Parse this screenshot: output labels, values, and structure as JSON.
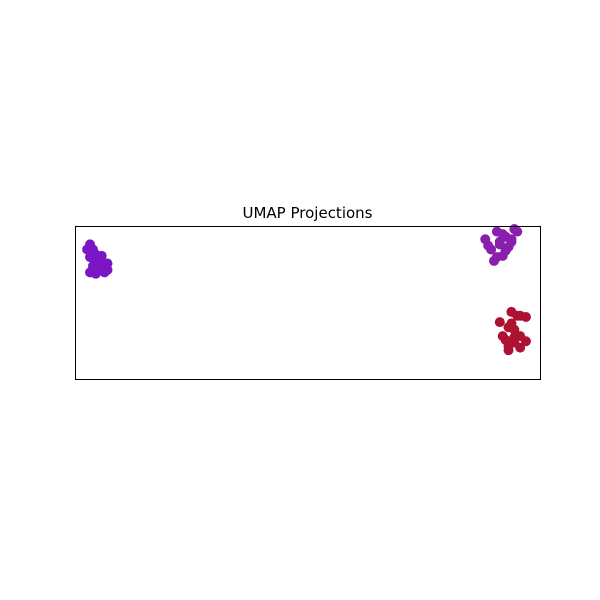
{
  "chart_data": {
    "type": "scatter",
    "title": "UMAP Projections",
    "xlabel": "",
    "ylabel": "",
    "xlim": [
      -6.0,
      10.0
    ],
    "ylim": [
      -3.0,
      3.0
    ],
    "grid": false,
    "axis_ticks": false,
    "series": [
      {
        "color": "#7b16c5",
        "x": [
          -5.6,
          -5.5,
          -5.3,
          -5.4,
          -5.5,
          -5.1,
          -5.3,
          -5.5,
          -5.4,
          -5.2,
          -5.0,
          -4.9,
          -4.9,
          -5.1,
          -5.3,
          -5.4,
          -5.2
        ],
        "y": [
          2.1,
          1.8,
          1.9,
          2.1,
          2.3,
          1.85,
          1.6,
          1.2,
          1.45,
          1.3,
          1.2,
          1.3,
          1.55,
          1.65,
          1.15,
          1.2,
          1.4
        ]
      },
      {
        "color": "#8a1fae",
        "x": [
          8.1,
          8.2,
          8.5,
          8.6,
          8.7,
          8.8,
          9.0,
          9.2,
          9.0,
          8.9,
          8.7,
          8.4,
          8.3,
          8.5,
          8.6,
          9.1,
          8.8
        ],
        "y": [
          2.5,
          2.25,
          2.8,
          2.4,
          2.7,
          2.6,
          2.4,
          2.8,
          2.5,
          2.2,
          1.85,
          1.65,
          2.1,
          1.8,
          2.3,
          2.9,
          2.05
        ]
      },
      {
        "color": "#ae1232",
        "x": [
          8.6,
          8.9,
          9.1,
          9.2,
          9.0,
          9.3,
          9.5,
          9.3,
          9.1,
          8.8,
          8.9,
          9.0,
          9.3,
          9.5,
          8.9,
          8.7,
          9.1
        ],
        "y": [
          -0.75,
          -0.95,
          -1.05,
          -0.5,
          -0.8,
          -1.3,
          -1.5,
          -1.75,
          -1.55,
          -1.45,
          -1.7,
          -0.35,
          -0.5,
          -0.55,
          -1.85,
          -1.3,
          -1.35
        ]
      }
    ]
  }
}
